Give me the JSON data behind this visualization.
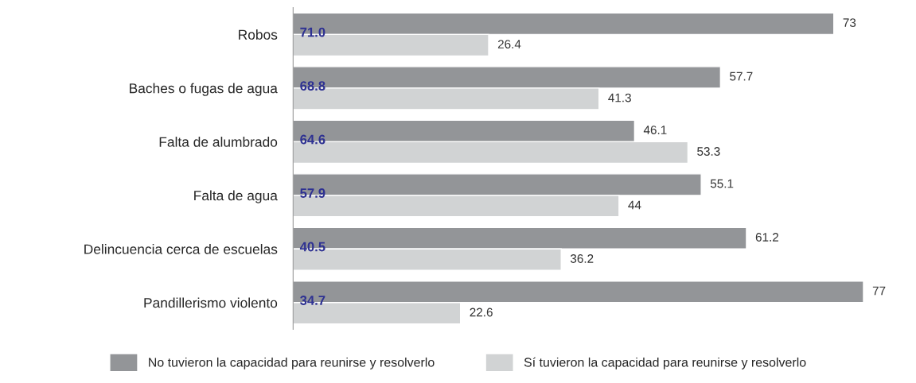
{
  "chart_data": {
    "type": "bar",
    "orientation": "horizontal",
    "categories": [
      "Robos",
      "Baches o fugas de agua",
      "Falta de alumbrado",
      "Falta de agua",
      "Delincuencia cerca de escuelas",
      "Pandillerismo violento"
    ],
    "series": [
      {
        "name": "No tuvieron la capacidad para reunirse y resolverlo",
        "color": "#939598",
        "values": [
          73,
          57.7,
          46.1,
          55.1,
          61.2,
          77
        ]
      },
      {
        "name": "Sí tuvieron la capacidad para reunirse y resolverlo",
        "color": "#d1d3d4",
        "values": [
          26.4,
          41.3,
          53.3,
          44,
          36.2,
          22.6
        ]
      }
    ],
    "annotations": [
      {
        "text": "71.0",
        "y": "Robos"
      },
      {
        "text": "68.8",
        "y": "Baches o fugas de agua"
      },
      {
        "text": "64.6",
        "y": "Falta de alumbrado"
      },
      {
        "text": "57.9",
        "y": "Falta de agua"
      },
      {
        "text": "40.5",
        "y": "Delincuencia cerca de escuelas"
      },
      {
        "text": "34.7",
        "y": "Pandillerismo violento"
      }
    ],
    "data_labels": true,
    "legend": "bottom",
    "grid": false
  }
}
